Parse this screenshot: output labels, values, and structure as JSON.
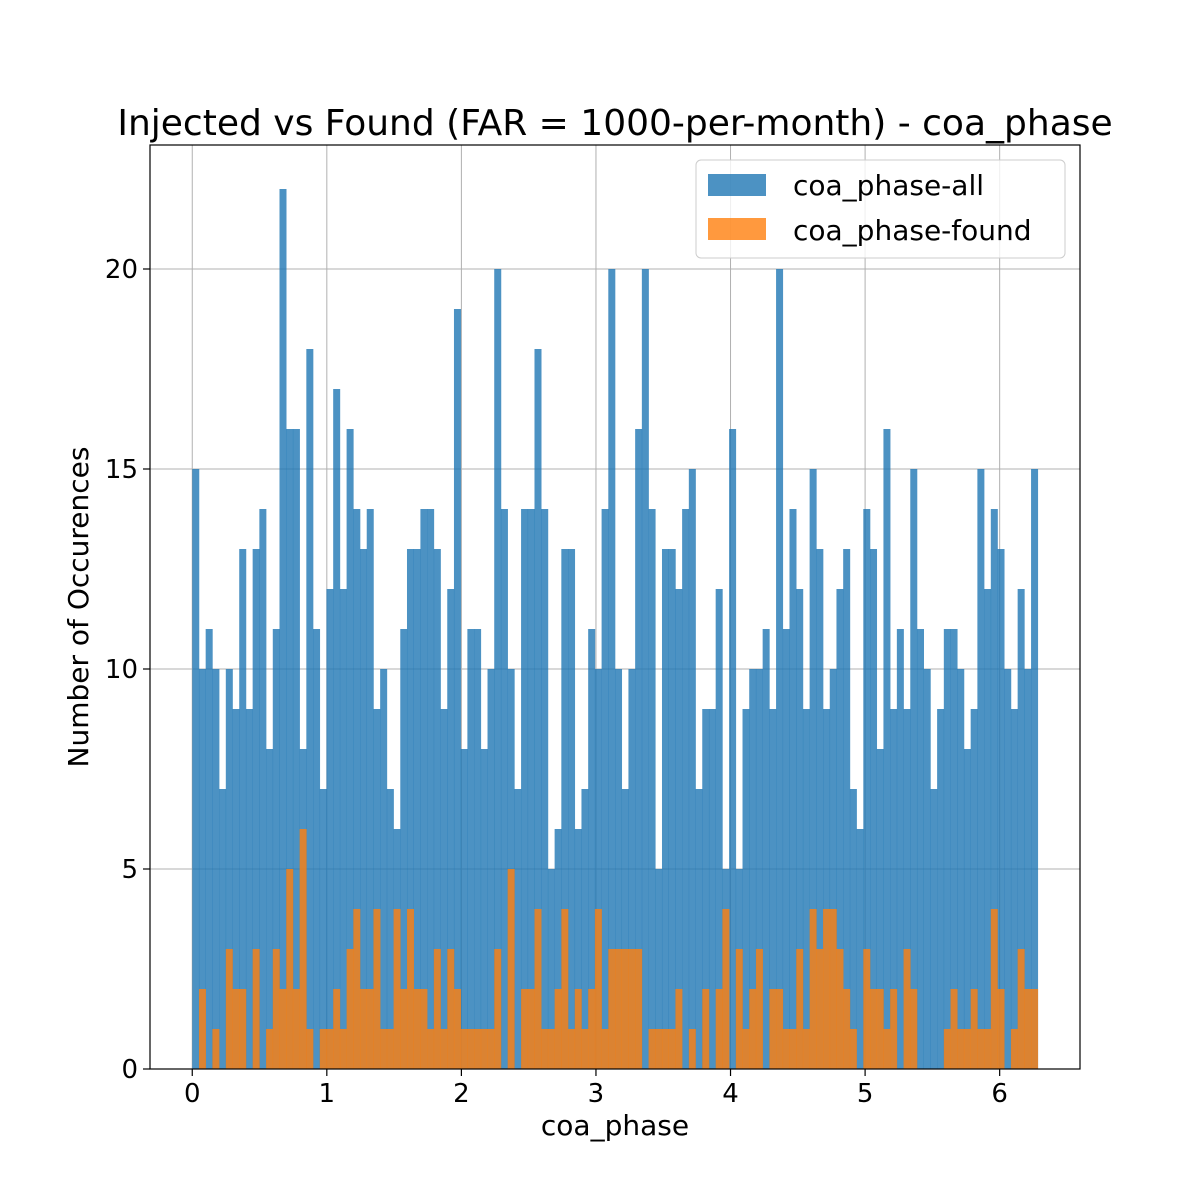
{
  "chart_data": {
    "type": "bar",
    "title": "Injected vs Found (FAR = 1000-per-month) - coa_phase",
    "xlabel": "coa_phase",
    "ylabel": "Number of Occurences",
    "xlim": [
      -0.314,
      6.597
    ],
    "ylim": [
      0,
      23.1
    ],
    "xticks": [
      0,
      1,
      2,
      3,
      4,
      5,
      6
    ],
    "yticks": [
      0,
      5,
      10,
      15,
      20
    ],
    "grid": true,
    "legend_position": "top-right",
    "bin_range": [
      0,
      6.2832
    ],
    "num_bins": 126,
    "series": [
      {
        "name": "coa_phase-all",
        "color": "#1f77b4",
        "alpha": 0.8,
        "values": [
          15,
          10,
          11,
          10,
          7,
          10,
          9,
          13,
          9,
          13,
          14,
          8,
          11,
          22,
          16,
          16,
          8,
          18,
          11,
          7,
          12,
          17,
          12,
          16,
          14,
          13,
          14,
          9,
          10,
          7,
          6,
          11,
          13,
          13,
          14,
          14,
          13,
          9,
          12,
          19,
          8,
          11,
          11,
          8,
          10,
          20,
          14,
          10,
          7,
          14,
          14,
          18,
          14,
          5,
          6,
          13,
          13,
          6,
          7,
          11,
          10,
          14,
          20,
          10,
          7,
          10,
          16,
          20,
          14,
          5,
          13,
          13,
          12,
          14,
          15,
          7,
          9,
          9,
          12,
          5,
          16,
          5,
          9,
          10,
          10,
          11,
          9,
          20,
          11,
          14,
          12,
          9,
          15,
          13,
          9,
          10,
          12,
          13,
          7,
          6,
          14,
          13,
          8,
          16,
          9,
          11,
          9,
          15,
          11,
          10,
          7,
          9,
          11,
          11,
          10,
          8,
          9,
          15,
          12,
          14,
          13,
          10,
          9,
          12,
          10,
          15
        ]
      },
      {
        "name": "coa_phase-found",
        "color": "#ff7f0e",
        "alpha": 0.8,
        "values": [
          0,
          2,
          0,
          1,
          0,
          3,
          2,
          2,
          0,
          3,
          0,
          1,
          3,
          2,
          5,
          2,
          6,
          1,
          0,
          1,
          1,
          2,
          1,
          3,
          4,
          2,
          2,
          4,
          1,
          1,
          4,
          2,
          4,
          2,
          2,
          1,
          3,
          1,
          3,
          2,
          1,
          1,
          1,
          1,
          1,
          3,
          0,
          5,
          0,
          2,
          2,
          4,
          1,
          1,
          2,
          4,
          1,
          2,
          1,
          2,
          4,
          1,
          3,
          3,
          3,
          3,
          3,
          0,
          1,
          1,
          1,
          1,
          2,
          0,
          1,
          0,
          2,
          0,
          2,
          4,
          0,
          3,
          1,
          2,
          3,
          0,
          2,
          2,
          1,
          1,
          3,
          1,
          4,
          3,
          4,
          4,
          3,
          2,
          1,
          0,
          3,
          2,
          2,
          1,
          2,
          0,
          3,
          2,
          0,
          0,
          0,
          0,
          1,
          2,
          1,
          1,
          2,
          1,
          1,
          4,
          2,
          0,
          1,
          3,
          2,
          2
        ]
      }
    ]
  }
}
